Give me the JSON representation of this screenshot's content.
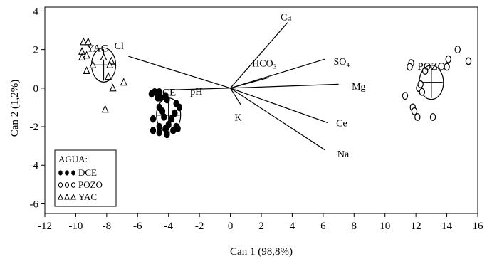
{
  "chart_data": {
    "type": "scatter",
    "title": "",
    "xlabel": "Can 1 (98,8%)",
    "ylabel": "Can 2 (1,2%)",
    "xlim": [
      -12,
      16
    ],
    "ylim": [
      -6.5,
      4.2
    ],
    "xticks": [
      -12,
      -10,
      -8,
      -6,
      -4,
      -2,
      0,
      2,
      4,
      6,
      8,
      10,
      12,
      14,
      16
    ],
    "yticks": [
      -6,
      -4,
      -2,
      0,
      2,
      4
    ],
    "grid": false,
    "legend": {
      "title": "AGUA:",
      "placement": "bottom-left",
      "entries": [
        "DCE",
        "POZO",
        "YAC"
      ]
    },
    "series": [
      {
        "name": "DCE",
        "marker": "filled-circle",
        "centroid": [
          -4.0,
          -1.4
        ],
        "label": "DCE",
        "points": [
          [
            -5.1,
            -0.3
          ],
          [
            -4.9,
            -0.2
          ],
          [
            -4.6,
            -0.2
          ],
          [
            -4.7,
            -0.5
          ],
          [
            -4.5,
            -0.5
          ],
          [
            -4.2,
            -0.4
          ],
          [
            -4.1,
            -0.6
          ],
          [
            -3.5,
            -0.8
          ],
          [
            -3.3,
            -1.0
          ],
          [
            -4.6,
            -1.0
          ],
          [
            -4.4,
            -1.2
          ],
          [
            -3.6,
            -1.3
          ],
          [
            -4.3,
            -1.5
          ],
          [
            -5.0,
            -1.6
          ],
          [
            -3.8,
            -1.6
          ],
          [
            -4.0,
            -1.9
          ],
          [
            -3.5,
            -2.0
          ],
          [
            -3.4,
            -2.1
          ],
          [
            -4.6,
            -2.0
          ],
          [
            -5.0,
            -2.2
          ],
          [
            -4.2,
            -2.1
          ],
          [
            -4.1,
            -2.4
          ],
          [
            -4.6,
            -2.3
          ],
          [
            -3.7,
            -2.2
          ]
        ]
      },
      {
        "name": "POZO",
        "marker": "open-circle",
        "centroid": [
          13.0,
          0.3
        ],
        "label": "POZO",
        "points": [
          [
            11.7,
            1.3
          ],
          [
            11.6,
            1.1
          ],
          [
            12.6,
            0.9
          ],
          [
            14.0,
            1.1
          ],
          [
            14.1,
            1.5
          ],
          [
            14.7,
            2.0
          ],
          [
            15.4,
            1.4
          ],
          [
            12.2,
            0.0
          ],
          [
            12.4,
            -0.2
          ],
          [
            12.3,
            0.2
          ],
          [
            11.3,
            -0.4
          ],
          [
            11.8,
            -1.0
          ],
          [
            11.9,
            -1.2
          ],
          [
            12.1,
            -1.5
          ],
          [
            13.1,
            -1.5
          ]
        ]
      },
      {
        "name": "YAC",
        "marker": "open-triangle",
        "centroid": [
          -8.2,
          1.2
        ],
        "label": "YAC",
        "points": [
          [
            -9.5,
            2.4
          ],
          [
            -9.2,
            2.4
          ],
          [
            -9.6,
            1.9
          ],
          [
            -9.3,
            1.7
          ],
          [
            -9.6,
            1.6
          ],
          [
            -8.9,
            1.2
          ],
          [
            -8.2,
            1.6
          ],
          [
            -7.7,
            1.4
          ],
          [
            -7.8,
            1.2
          ],
          [
            -9.3,
            0.9
          ],
          [
            -7.9,
            0.6
          ],
          [
            -7.6,
            0.0
          ],
          [
            -6.9,
            0.3
          ],
          [
            -8.1,
            -1.1
          ]
        ]
      }
    ],
    "vectors": [
      {
        "label": "Cl",
        "end": [
          -6.6,
          1.65
        ]
      },
      {
        "label": "pH",
        "end": [
          -4.3,
          -0.1
        ]
      },
      {
        "label": "Ca",
        "end": [
          3.7,
          3.4
        ]
      },
      {
        "label": "HCO₃",
        "end": [
          2.5,
          0.55
        ]
      },
      {
        "label": "SO₄",
        "end": [
          6.1,
          1.5
        ]
      },
      {
        "label": "Mg",
        "end": [
          7.0,
          0.2
        ]
      },
      {
        "label": "K",
        "end": [
          0.7,
          -0.9
        ]
      },
      {
        "label": "Ce",
        "end": [
          6.3,
          -1.8
        ]
      },
      {
        "label": "Na",
        "end": [
          6.1,
          -3.2
        ]
      }
    ],
    "vector_labels": [
      {
        "label": "Cl",
        "at": [
          -7.2,
          2.2
        ]
      },
      {
        "label": "pH",
        "at": [
          -2.2,
          -0.15
        ]
      },
      {
        "label": "Ca",
        "at": [
          3.6,
          3.7
        ]
      },
      {
        "label": "HCO₃",
        "at": [
          2.2,
          1.3
        ]
      },
      {
        "label": "SO₄",
        "at": [
          7.2,
          1.4
        ]
      },
      {
        "label": "Mg",
        "at": [
          8.3,
          0.1
        ]
      },
      {
        "label": "K",
        "at": [
          0.5,
          -1.5
        ]
      },
      {
        "label": "Ce",
        "at": [
          7.2,
          -1.8
        ]
      },
      {
        "label": "Na",
        "at": [
          7.3,
          -3.4
        ]
      }
    ]
  }
}
